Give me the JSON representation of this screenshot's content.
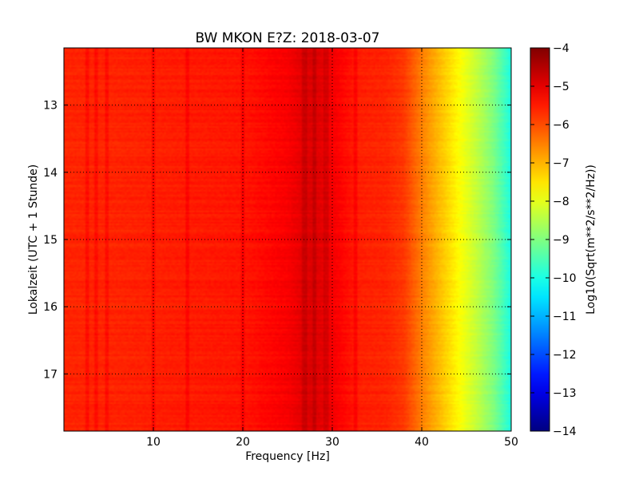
{
  "chart_data": {
    "type": "heatmap",
    "title": "BW MKON E?Z: 2018-03-07",
    "xlabel": "Frequency [Hz]",
    "ylabel": "Lokalzeit (UTC + 1 Stunde)",
    "colorbar_label": "Log10(Sqrt(m**2/s**2/Hz))",
    "xlim": [
      0,
      50
    ],
    "ylim": [
      12.15,
      17.85
    ],
    "y_inverted": true,
    "x_ticks": [
      10,
      20,
      30,
      40,
      50
    ],
    "x_tick_labels": [
      "10",
      "20",
      "30",
      "40",
      "50"
    ],
    "y_ticks": [
      13,
      14,
      15,
      16,
      17
    ],
    "y_tick_labels": [
      "13",
      "14",
      "15",
      "16",
      "17"
    ],
    "grid": true,
    "colormap": "jet",
    "clim": [
      -14,
      -4
    ],
    "colorbar_ticks": [
      -4,
      -5,
      -6,
      -7,
      -8,
      -9,
      -10,
      -11,
      -12,
      -13,
      -14
    ],
    "colorbar_tick_labels": [
      "−4",
      "−5",
      "−6",
      "−7",
      "−8",
      "−9",
      "−10",
      "−11",
      "−12",
      "−13",
      "−14"
    ],
    "spectrum_profile": {
      "frequency_hz": [
        0,
        5,
        10,
        15,
        20,
        25,
        27,
        28,
        30,
        33,
        36,
        38,
        40,
        42,
        44,
        46,
        48,
        50
      ],
      "log10_amplitude": [
        -5.6,
        -5.6,
        -5.55,
        -5.5,
        -5.45,
        -5.2,
        -4.95,
        -4.9,
        -5.15,
        -5.55,
        -5.6,
        -5.8,
        -6.5,
        -7.1,
        -7.7,
        -8.3,
        -9.0,
        -10.0
      ]
    },
    "narrow_lines_hz": [
      2.6,
      3.6,
      4.8,
      10.0,
      13.8,
      20.0,
      26.9,
      28.0,
      29.3,
      32.6
    ],
    "spectrogram_rows": 240,
    "spectrogram_columns": 250
  },
  "colors": {
    "background": "#ffffff",
    "axes_frame": "#000000",
    "grid": "#000000"
  }
}
